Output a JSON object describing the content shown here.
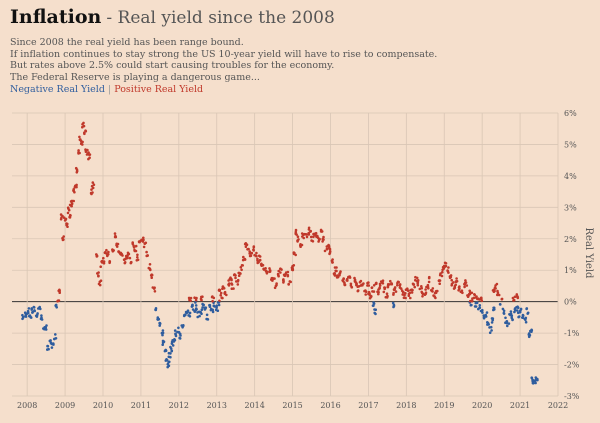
{
  "header": {
    "title": "Inflation",
    "subtitle": "- Real yield since the 2008",
    "description_lines": [
      "Since 2008 the real yield has been range bound.",
      "If inflation continues to stay strong the US 10-year yield will have to rise to compensate.",
      "But rates above 2.5% could start causing troubles for the economy.",
      "The Federal Reserve is playing a dangerous game..."
    ]
  },
  "legend": {
    "negative": "Negative Real Yield",
    "separator": "|",
    "positive": "Positive Real Yield"
  },
  "colors": {
    "negative": "#2f5d9e",
    "positive": "#c0392b",
    "background": "#f5dfcc",
    "grid": "#d9c6b5",
    "zero_line": "#333333"
  },
  "chart_data": {
    "type": "scatter",
    "ylabel": "Real Yield",
    "xlim": [
      2007.6,
      2022.0
    ],
    "ylim": [
      -3,
      6
    ],
    "x_ticks": [
      "2008",
      "2009",
      "2010",
      "2011",
      "2012",
      "2013",
      "2014",
      "2015",
      "2016",
      "2017",
      "2018",
      "2019",
      "2020",
      "2021",
      "2022"
    ],
    "y_ticks": [
      "6%",
      "5%",
      "4%",
      "3%",
      "2%",
      "1%",
      "0%",
      "-1%",
      "-2%",
      "-3%"
    ],
    "y_tick_values": [
      6,
      5,
      4,
      3,
      2,
      1,
      0,
      -1,
      -2,
      -3
    ],
    "grid": true,
    "y_axis_side": "right",
    "series": [
      {
        "color_key": "mixed",
        "points": [
          [
            2007.9,
            -0.5
          ],
          [
            2007.96,
            -0.4
          ],
          [
            2008.02,
            -0.3
          ],
          [
            2008.08,
            -0.45
          ],
          [
            2008.14,
            -0.3
          ],
          [
            2008.2,
            -0.25
          ],
          [
            2008.26,
            -0.4
          ],
          [
            2008.32,
            -0.2
          ],
          [
            2008.38,
            -0.5
          ],
          [
            2008.44,
            -0.9
          ],
          [
            2008.5,
            -0.8
          ],
          [
            2008.56,
            -1.5
          ],
          [
            2008.62,
            -1.3
          ],
          [
            2008.68,
            -1.4
          ],
          [
            2008.74,
            -1.1
          ],
          [
            2008.78,
            -0.1
          ],
          [
            2008.82,
            0.1
          ],
          [
            2008.86,
            0.3
          ],
          [
            2008.92,
            2.7
          ],
          [
            2008.96,
            2.0
          ],
          [
            2009.0,
            2.6
          ],
          [
            2009.04,
            2.4
          ],
          [
            2009.08,
            2.9
          ],
          [
            2009.12,
            2.7
          ],
          [
            2009.16,
            3.1
          ],
          [
            2009.2,
            3.2
          ],
          [
            2009.24,
            3.5
          ],
          [
            2009.28,
            3.7
          ],
          [
            2009.32,
            4.2
          ],
          [
            2009.36,
            4.8
          ],
          [
            2009.4,
            5.2
          ],
          [
            2009.44,
            5.0
          ],
          [
            2009.48,
            5.6
          ],
          [
            2009.52,
            5.4
          ],
          [
            2009.56,
            4.8
          ],
          [
            2009.6,
            4.7
          ],
          [
            2009.64,
            4.6
          ],
          [
            2009.7,
            3.5
          ],
          [
            2009.74,
            3.7
          ],
          [
            2009.84,
            1.5
          ],
          [
            2009.88,
            0.9
          ],
          [
            2009.92,
            0.6
          ],
          [
            2009.96,
            1.2
          ],
          [
            2010.02,
            1.3
          ],
          [
            2010.08,
            1.6
          ],
          [
            2010.14,
            1.5
          ],
          [
            2010.2,
            1.3
          ],
          [
            2010.26,
            1.6
          ],
          [
            2010.32,
            2.1
          ],
          [
            2010.38,
            1.8
          ],
          [
            2010.44,
            1.6
          ],
          [
            2010.5,
            1.5
          ],
          [
            2010.56,
            1.3
          ],
          [
            2010.62,
            1.4
          ],
          [
            2010.68,
            1.5
          ],
          [
            2010.74,
            1.3
          ],
          [
            2010.8,
            1.8
          ],
          [
            2010.86,
            1.7
          ],
          [
            2010.92,
            1.4
          ],
          [
            2010.98,
            1.9
          ],
          [
            2011.04,
            2.0
          ],
          [
            2011.1,
            1.8
          ],
          [
            2011.16,
            1.5
          ],
          [
            2011.22,
            1.1
          ],
          [
            2011.28,
            0.8
          ],
          [
            2011.34,
            0.4
          ],
          [
            2011.4,
            -0.2
          ],
          [
            2011.46,
            -0.5
          ],
          [
            2011.52,
            -0.7
          ],
          [
            2011.56,
            -1.0
          ],
          [
            2011.6,
            -1.3
          ],
          [
            2011.64,
            -1.6
          ],
          [
            2011.68,
            -1.9
          ],
          [
            2011.72,
            -2.0
          ],
          [
            2011.76,
            -1.7
          ],
          [
            2011.8,
            -1.5
          ],
          [
            2011.84,
            -1.3
          ],
          [
            2011.88,
            -1.2
          ],
          [
            2011.92,
            -1.0
          ],
          [
            2011.98,
            -0.9
          ],
          [
            2012.04,
            -1.1
          ],
          [
            2012.1,
            -0.8
          ],
          [
            2012.16,
            -0.5
          ],
          [
            2012.22,
            -0.3
          ],
          [
            2012.28,
            -0.4
          ],
          [
            2012.34,
            -0.1
          ],
          [
            2012.4,
            -0.3
          ],
          [
            2012.46,
            -0.2
          ],
          [
            2012.52,
            -0.4
          ],
          [
            2012.58,
            -0.3
          ],
          [
            2012.64,
            -0.1
          ],
          [
            2012.7,
            -0.2
          ],
          [
            2012.76,
            -0.5
          ],
          [
            2012.82,
            -0.2
          ],
          [
            2012.88,
            -0.3
          ],
          [
            2012.94,
            -0.1
          ],
          [
            2013.0,
            -0.2
          ],
          [
            2013.06,
            -0.05
          ],
          [
            2012.3,
            0.1
          ],
          [
            2012.44,
            0.05
          ],
          [
            2012.6,
            0.1
          ],
          [
            2012.9,
            0.1
          ],
          [
            2013.06,
            0.3
          ],
          [
            2013.12,
            0.2
          ],
          [
            2013.18,
            0.4
          ],
          [
            2013.24,
            0.3
          ],
          [
            2013.3,
            0.6
          ],
          [
            2013.36,
            0.7
          ],
          [
            2013.42,
            0.5
          ],
          [
            2013.48,
            0.8
          ],
          [
            2013.54,
            0.6
          ],
          [
            2013.6,
            0.9
          ],
          [
            2013.66,
            1.1
          ],
          [
            2013.72,
            1.4
          ],
          [
            2013.78,
            1.8
          ],
          [
            2013.84,
            1.6
          ],
          [
            2013.9,
            1.5
          ],
          [
            2013.96,
            1.7
          ],
          [
            2014.02,
            1.5
          ],
          [
            2014.08,
            1.3
          ],
          [
            2014.14,
            1.4
          ],
          [
            2014.2,
            1.2
          ],
          [
            2014.26,
            1.1
          ],
          [
            2014.32,
            0.9
          ],
          [
            2014.38,
            1.0
          ],
          [
            2014.44,
            0.7
          ],
          [
            2014.5,
            0.8
          ],
          [
            2014.56,
            0.5
          ],
          [
            2014.62,
            0.9
          ],
          [
            2014.68,
            1.0
          ],
          [
            2014.74,
            0.7
          ],
          [
            2014.8,
            0.8
          ],
          [
            2014.86,
            0.9
          ],
          [
            2014.92,
            0.6
          ],
          [
            2014.98,
            1.0
          ],
          [
            2015.02,
            1.1
          ],
          [
            2015.06,
            1.5
          ],
          [
            2015.1,
            2.2
          ],
          [
            2015.16,
            2.0
          ],
          [
            2015.22,
            1.8
          ],
          [
            2015.28,
            2.1
          ],
          [
            2015.34,
            2.2
          ],
          [
            2015.4,
            2.1
          ],
          [
            2015.46,
            2.3
          ],
          [
            2015.52,
            2.0
          ],
          [
            2015.58,
            2.2
          ],
          [
            2015.64,
            2.1
          ],
          [
            2015.7,
            2.0
          ],
          [
            2015.76,
            2.2
          ],
          [
            2015.82,
            2.0
          ],
          [
            2015.88,
            1.7
          ],
          [
            2015.94,
            1.8
          ],
          [
            2016.0,
            1.6
          ],
          [
            2016.06,
            1.3
          ],
          [
            2016.1,
            0.9
          ],
          [
            2016.14,
            1.0
          ],
          [
            2016.2,
            0.8
          ],
          [
            2016.26,
            0.9
          ],
          [
            2016.32,
            0.7
          ],
          [
            2016.38,
            0.6
          ],
          [
            2016.44,
            0.7
          ],
          [
            2016.5,
            0.8
          ],
          [
            2016.56,
            0.5
          ],
          [
            2016.62,
            0.7
          ],
          [
            2016.68,
            0.6
          ],
          [
            2016.74,
            0.4
          ],
          [
            2016.8,
            0.6
          ],
          [
            2016.86,
            0.5
          ],
          [
            2016.92,
            0.3
          ],
          [
            2016.98,
            0.6
          ],
          [
            2017.02,
            0.3
          ],
          [
            2017.06,
            0.2
          ],
          [
            2017.12,
            0.4
          ],
          [
            2017.18,
            0.6
          ],
          [
            2017.24,
            0.3
          ],
          [
            2017.3,
            0.5
          ],
          [
            2017.36,
            0.6
          ],
          [
            2017.42,
            0.4
          ],
          [
            2017.48,
            0.2
          ],
          [
            2017.54,
            0.5
          ],
          [
            2017.6,
            0.6
          ],
          [
            2017.66,
            0.3
          ],
          [
            2017.72,
            0.4
          ],
          [
            2017.78,
            0.6
          ],
          [
            2017.84,
            0.5
          ],
          [
            2017.9,
            0.3
          ],
          [
            2017.96,
            0.2
          ],
          [
            2018.02,
            0.4
          ],
          [
            2018.08,
            0.2
          ],
          [
            2018.14,
            0.3
          ],
          [
            2018.2,
            0.5
          ],
          [
            2018.26,
            0.7
          ],
          [
            2018.32,
            0.6
          ],
          [
            2018.38,
            0.4
          ],
          [
            2018.44,
            0.2
          ],
          [
            2018.5,
            0.3
          ],
          [
            2018.56,
            0.5
          ],
          [
            2018.62,
            0.7
          ],
          [
            2018.68,
            0.4
          ],
          [
            2018.74,
            0.2
          ],
          [
            2018.8,
            0.3
          ],
          [
            2018.86,
            0.6
          ],
          [
            2018.92,
            0.9
          ],
          [
            2018.98,
            1.1
          ],
          [
            2019.04,
            1.2
          ],
          [
            2019.1,
            1.0
          ],
          [
            2019.16,
            0.8
          ],
          [
            2019.22,
            0.6
          ],
          [
            2019.28,
            0.5
          ],
          [
            2019.34,
            0.7
          ],
          [
            2019.4,
            0.4
          ],
          [
            2019.46,
            0.3
          ],
          [
            2019.52,
            0.5
          ],
          [
            2019.58,
            0.6
          ],
          [
            2019.64,
            0.2
          ],
          [
            2019.7,
            0.3
          ],
          [
            2019.76,
            0.1
          ],
          [
            2019.82,
            0.2
          ],
          [
            2019.9,
            0.1
          ],
          [
            2020.0,
            0.05
          ],
          [
            2020.3,
            0.4
          ],
          [
            2020.36,
            0.5
          ],
          [
            2020.42,
            0.3
          ],
          [
            2020.84,
            0.1
          ],
          [
            2020.92,
            0.2
          ],
          [
            2017.12,
            -0.1
          ],
          [
            2017.18,
            -0.3
          ],
          [
            2017.66,
            -0.1
          ],
          [
            2019.7,
            -0.05
          ],
          [
            2019.84,
            -0.1
          ],
          [
            2019.92,
            -0.2
          ],
          [
            2019.98,
            -0.3
          ],
          [
            2020.04,
            -0.5
          ],
          [
            2020.1,
            -0.4
          ],
          [
            2020.16,
            -0.7
          ],
          [
            2020.22,
            -0.9
          ],
          [
            2020.26,
            -0.6
          ],
          [
            2020.32,
            -0.2
          ],
          [
            2020.5,
            0.0
          ],
          [
            2020.56,
            -0.3
          ],
          [
            2020.62,
            -0.6
          ],
          [
            2020.68,
            -0.7
          ],
          [
            2020.74,
            -0.4
          ],
          [
            2020.8,
            -0.5
          ],
          [
            2020.86,
            -0.3
          ],
          [
            2020.92,
            -0.2
          ],
          [
            2020.98,
            -0.4
          ],
          [
            2021.02,
            -0.3
          ],
          [
            2021.08,
            -0.5
          ],
          [
            2021.14,
            -0.6
          ],
          [
            2021.2,
            -0.3
          ],
          [
            2021.24,
            -1.1
          ],
          [
            2021.28,
            -0.9
          ],
          [
            2021.32,
            -2.5
          ],
          [
            2021.36,
            -2.6
          ],
          [
            2021.4,
            -2.5
          ],
          [
            2021.44,
            -2.45
          ]
        ]
      }
    ]
  }
}
